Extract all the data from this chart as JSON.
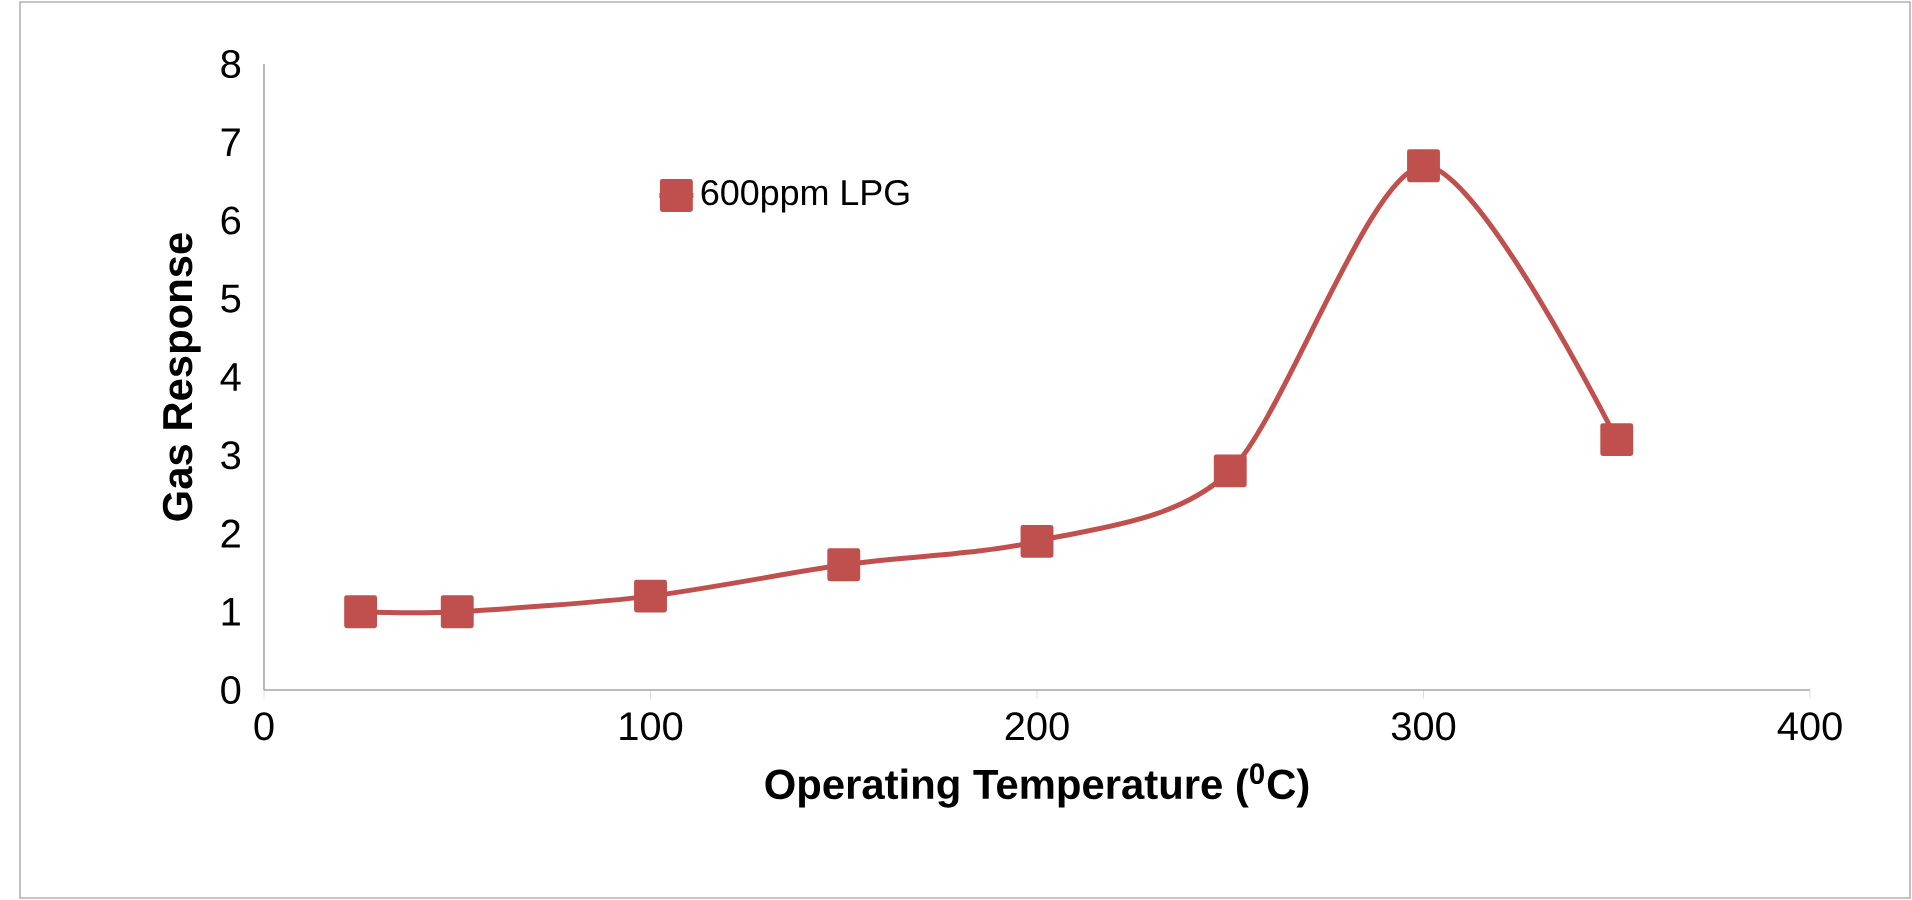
{
  "chart_data": {
    "type": "line",
    "xlabel": "Operating Temperature ($^{0}$C)",
    "ylabel": "Gas Response",
    "x": [
      25,
      50,
      100,
      150,
      200,
      250,
      300,
      350
    ],
    "series": [
      {
        "name": "600ppm LPG",
        "color": "#c0504d",
        "values": [
          1.0,
          1.0,
          1.2,
          1.6,
          1.9,
          2.8,
          6.7,
          3.2
        ]
      }
    ],
    "xlim": [
      0,
      400
    ],
    "xticks": [
      0,
      100,
      200,
      300,
      400
    ],
    "ylim": [
      0,
      8
    ],
    "yticks": [
      0,
      1,
      2,
      3,
      4,
      5,
      6,
      7,
      8
    ],
    "legend": "top left",
    "marker": "square",
    "line_style": "solid",
    "grid": false
  }
}
